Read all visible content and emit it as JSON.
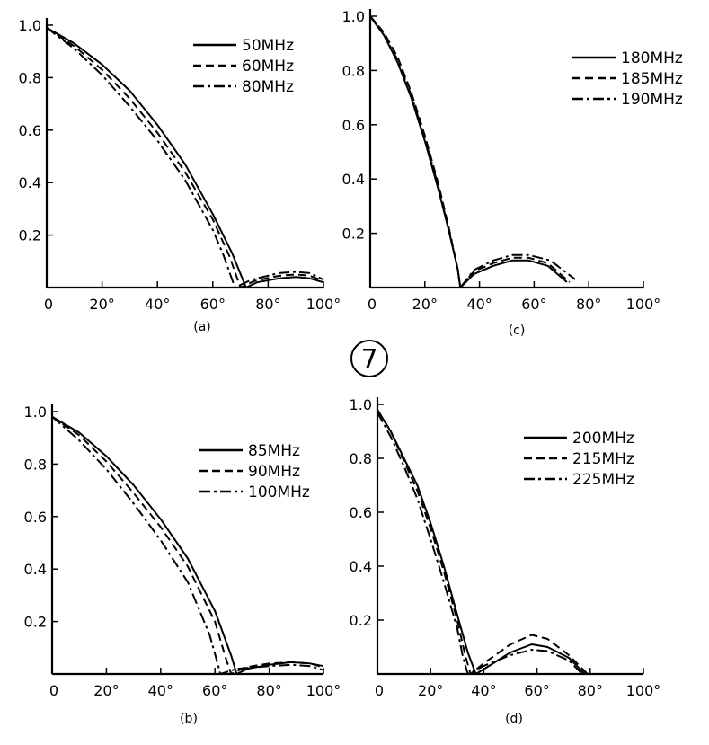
{
  "figure_badge": "7",
  "chart_data": [
    {
      "id": "a",
      "type": "line",
      "caption": "(a)",
      "xlim": [
        0,
        100
      ],
      "ylim": [
        0,
        1.0
      ],
      "x_ticks": [
        "0",
        "20°",
        "40°",
        "60°",
        "80°",
        "100°"
      ],
      "y_ticks": [
        "1.0",
        "0.8",
        "0.6",
        "0.4",
        "0.2"
      ],
      "grid": false,
      "legend_position": "top-right",
      "series": [
        {
          "name": "50MHz",
          "style": "solid",
          "points": [
            [
              0,
              0.99
            ],
            [
              10,
              0.93
            ],
            [
              20,
              0.85
            ],
            [
              30,
              0.75
            ],
            [
              40,
              0.62
            ],
            [
              50,
              0.47
            ],
            [
              60,
              0.28
            ],
            [
              67,
              0.13
            ],
            [
              72,
              0.0
            ],
            [
              76,
              0.02
            ],
            [
              84,
              0.035
            ],
            [
              90,
              0.04
            ],
            [
              95,
              0.035
            ],
            [
              100,
              0.02
            ]
          ]
        },
        {
          "name": "60MHz",
          "style": "dashed",
          "points": [
            [
              0,
              0.99
            ],
            [
              10,
              0.92
            ],
            [
              20,
              0.83
            ],
            [
              30,
              0.72
            ],
            [
              40,
              0.59
            ],
            [
              50,
              0.44
            ],
            [
              60,
              0.26
            ],
            [
              66,
              0.12
            ],
            [
              70,
              0.0
            ],
            [
              75,
              0.025
            ],
            [
              84,
              0.045
            ],
            [
              90,
              0.05
            ],
            [
              95,
              0.045
            ],
            [
              100,
              0.025
            ]
          ]
        },
        {
          "name": "80MHz",
          "style": "dashdot",
          "points": [
            [
              0,
              0.99
            ],
            [
              10,
              0.91
            ],
            [
              20,
              0.81
            ],
            [
              30,
              0.69
            ],
            [
              40,
              0.56
            ],
            [
              50,
              0.41
            ],
            [
              60,
              0.22
            ],
            [
              64,
              0.12
            ],
            [
              68,
              0.0
            ],
            [
              74,
              0.03
            ],
            [
              84,
              0.055
            ],
            [
              90,
              0.06
            ],
            [
              95,
              0.055
            ],
            [
              100,
              0.03
            ]
          ]
        }
      ]
    },
    {
      "id": "c",
      "type": "line",
      "caption": "(c)",
      "xlim": [
        0,
        100
      ],
      "ylim": [
        0,
        1.0
      ],
      "x_ticks": [
        "0",
        "20°",
        "40°",
        "60°",
        "80°",
        "100°"
      ],
      "y_ticks": [
        "1.0",
        "0.8",
        "0.6",
        "0.4",
        "0.2"
      ],
      "grid": false,
      "legend_position": "top-right",
      "series": [
        {
          "name": "180MHz",
          "style": "solid",
          "points": [
            [
              0,
              1.0
            ],
            [
              5,
              0.93
            ],
            [
              10,
              0.83
            ],
            [
              15,
              0.7
            ],
            [
              20,
              0.54
            ],
            [
              25,
              0.36
            ],
            [
              29,
              0.2
            ],
            [
              32,
              0.07
            ],
            [
              33,
              0.0
            ],
            [
              38,
              0.05
            ],
            [
              45,
              0.08
            ],
            [
              52,
              0.1
            ],
            [
              58,
              0.1
            ],
            [
              65,
              0.08
            ],
            [
              72,
              0.02
            ]
          ]
        },
        {
          "name": "185MHz",
          "style": "dashed",
          "points": [
            [
              0,
              1.0
            ],
            [
              5,
              0.94
            ],
            [
              10,
              0.85
            ],
            [
              15,
              0.72
            ],
            [
              20,
              0.56
            ],
            [
              25,
              0.38
            ],
            [
              29,
              0.21
            ],
            [
              32,
              0.07
            ],
            [
              33,
              0.0
            ],
            [
              38,
              0.06
            ],
            [
              45,
              0.09
            ],
            [
              52,
              0.11
            ],
            [
              58,
              0.11
            ],
            [
              65,
              0.09
            ],
            [
              73,
              0.02
            ]
          ]
        },
        {
          "name": "190MHz",
          "style": "dashdot",
          "points": [
            [
              0,
              1.0
            ],
            [
              5,
              0.93
            ],
            [
              10,
              0.84
            ],
            [
              15,
              0.71
            ],
            [
              20,
              0.55
            ],
            [
              25,
              0.37
            ],
            [
              29,
              0.2
            ],
            [
              32,
              0.07
            ],
            [
              33,
              0.0
            ],
            [
              38,
              0.065
            ],
            [
              45,
              0.1
            ],
            [
              52,
              0.12
            ],
            [
              58,
              0.12
            ],
            [
              66,
              0.1
            ],
            [
              75,
              0.03
            ]
          ]
        }
      ]
    },
    {
      "id": "b",
      "type": "line",
      "caption": "(b)",
      "xlim": [
        0,
        100
      ],
      "ylim": [
        0,
        1.0
      ],
      "x_ticks": [
        "0",
        "20°",
        "40°",
        "60°",
        "80°",
        "100°"
      ],
      "y_ticks": [
        "1.0",
        "0.8",
        "0.6",
        "0.4",
        "0.2"
      ],
      "grid": false,
      "legend_position": "top-right",
      "series": [
        {
          "name": "85MHz",
          "style": "solid",
          "points": [
            [
              0,
              0.98
            ],
            [
              10,
              0.92
            ],
            [
              20,
              0.83
            ],
            [
              30,
              0.72
            ],
            [
              40,
              0.59
            ],
            [
              50,
              0.44
            ],
            [
              60,
              0.24
            ],
            [
              66,
              0.07
            ],
            [
              68,
              0.0
            ],
            [
              72,
              0.02
            ],
            [
              80,
              0.035
            ],
            [
              88,
              0.045
            ],
            [
              95,
              0.04
            ],
            [
              100,
              0.03
            ]
          ]
        },
        {
          "name": "90MHz",
          "style": "dashed",
          "points": [
            [
              0,
              0.98
            ],
            [
              10,
              0.91
            ],
            [
              20,
              0.81
            ],
            [
              30,
              0.69
            ],
            [
              40,
              0.56
            ],
            [
              50,
              0.41
            ],
            [
              60,
              0.2
            ],
            [
              64,
              0.06
            ],
            [
              66,
              0.0
            ],
            [
              71,
              0.025
            ],
            [
              80,
              0.04
            ],
            [
              88,
              0.045
            ],
            [
              95,
              0.04
            ],
            [
              100,
              0.025
            ]
          ]
        },
        {
          "name": "100MHz",
          "style": "dashdot",
          "points": [
            [
              0,
              0.98
            ],
            [
              10,
              0.89
            ],
            [
              20,
              0.78
            ],
            [
              30,
              0.65
            ],
            [
              40,
              0.51
            ],
            [
              50,
              0.35
            ],
            [
              58,
              0.15
            ],
            [
              61,
              0.04
            ],
            [
              62,
              0.0
            ],
            [
              68,
              0.02
            ],
            [
              80,
              0.03
            ],
            [
              88,
              0.035
            ],
            [
              95,
              0.03
            ],
            [
              100,
              0.015
            ]
          ]
        }
      ]
    },
    {
      "id": "d",
      "type": "line",
      "caption": "(d)",
      "xlim": [
        0,
        100
      ],
      "ylim": [
        0,
        1.0
      ],
      "x_ticks": [
        "0",
        "20°",
        "40°",
        "60°",
        "80°",
        "100°"
      ],
      "y_ticks": [
        "1.0",
        "0.8",
        "0.6",
        "0.4",
        "0.2"
      ],
      "grid": false,
      "legend_position": "top-right",
      "series": [
        {
          "name": "200MHz",
          "style": "solid",
          "points": [
            [
              0,
              0.98
            ],
            [
              5,
              0.9
            ],
            [
              10,
              0.8
            ],
            [
              15,
              0.7
            ],
            [
              20,
              0.56
            ],
            [
              25,
              0.4
            ],
            [
              30,
              0.22
            ],
            [
              34,
              0.08
            ],
            [
              37,
              0.0
            ],
            [
              42,
              0.03
            ],
            [
              50,
              0.08
            ],
            [
              58,
              0.11
            ],
            [
              64,
              0.1
            ],
            [
              72,
              0.06
            ],
            [
              78,
              0.0
            ]
          ]
        },
        {
          "name": "215MHz",
          "style": "dashed",
          "points": [
            [
              0,
              0.98
            ],
            [
              5,
              0.9
            ],
            [
              10,
              0.79
            ],
            [
              15,
              0.68
            ],
            [
              20,
              0.54
            ],
            [
              25,
              0.38
            ],
            [
              30,
              0.2
            ],
            [
              33,
              0.07
            ],
            [
              35,
              0.0
            ],
            [
              40,
              0.04
            ],
            [
              50,
              0.11
            ],
            [
              58,
              0.145
            ],
            [
              64,
              0.13
            ],
            [
              72,
              0.07
            ],
            [
              79,
              0.0
            ]
          ]
        },
        {
          "name": "225MHz",
          "style": "dashdot",
          "points": [
            [
              0,
              0.97
            ],
            [
              5,
              0.88
            ],
            [
              10,
              0.77
            ],
            [
              15,
              0.65
            ],
            [
              20,
              0.5
            ],
            [
              25,
              0.34
            ],
            [
              30,
              0.17
            ],
            [
              32,
              0.07
            ],
            [
              34,
              0.0
            ],
            [
              40,
              0.03
            ],
            [
              50,
              0.07
            ],
            [
              58,
              0.09
            ],
            [
              64,
              0.085
            ],
            [
              72,
              0.05
            ],
            [
              77,
              0.0
            ]
          ]
        }
      ]
    }
  ]
}
